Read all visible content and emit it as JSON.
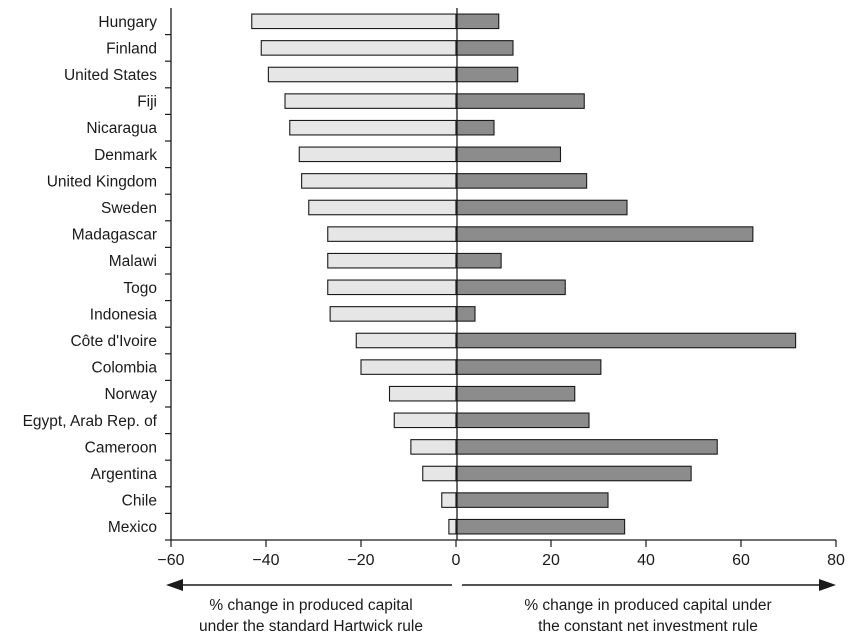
{
  "chart_data": {
    "type": "bar",
    "orientation": "horizontal",
    "categories": [
      "Hungary",
      "Finland",
      "United States",
      "Fiji",
      "Nicaragua",
      "Denmark",
      "United Kingdom",
      "Sweden",
      "Madagascar",
      "Malawi",
      "Togo",
      "Indonesia",
      "Côte d'Ivoire",
      "Colombia",
      "Norway",
      "Egypt, Arab Rep. of",
      "Cameroon",
      "Argentina",
      "Chile",
      "Mexico"
    ],
    "series": [
      {
        "values": [
          -43,
          -41,
          -39.5,
          -36,
          -35,
          -33,
          -32.5,
          -31,
          -27,
          -27,
          -27,
          -26.5,
          -21,
          -20,
          -14,
          -13,
          -9.5,
          -7,
          -3,
          -1.5
        ],
        "color": "#e6e6e6"
      },
      {
        "values": [
          9,
          12,
          13,
          27,
          8,
          22,
          27.5,
          36,
          62.5,
          9.5,
          23,
          4,
          71.5,
          30.5,
          25,
          28,
          55,
          49.5,
          32,
          35.5
        ],
        "color": "#8c8c8c"
      }
    ],
    "xlim": [
      -60,
      80
    ],
    "xticks": [
      "−60",
      "−40",
      "−20",
      "0",
      "20",
      "40",
      "60",
      "80"
    ],
    "xtick_values": [
      -60,
      -40,
      -20,
      0,
      20,
      40,
      60,
      80
    ],
    "annotations": {
      "left": [
        "% change in produced capital",
        "under the standard Hartwick rule"
      ],
      "right": [
        "% change in produced capital under",
        "the constant net investment rule"
      ]
    },
    "grid": false,
    "legend": "none"
  }
}
